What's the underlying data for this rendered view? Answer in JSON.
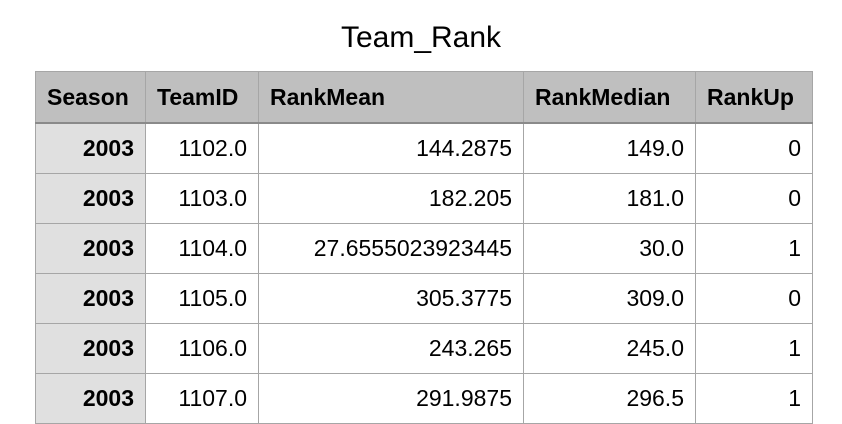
{
  "title": "Team_Rank",
  "table": {
    "columns": [
      "Season",
      "TeamID",
      "RankMean",
      "RankMedian",
      "RankUp"
    ],
    "rows": [
      [
        "2003",
        "1102.0",
        "144.2875",
        "149.0",
        "0"
      ],
      [
        "2003",
        "1103.0",
        "182.205",
        "181.0",
        "0"
      ],
      [
        "2003",
        "1104.0",
        "27.6555023923445",
        "30.0",
        "1"
      ],
      [
        "2003",
        "1105.0",
        "305.3775",
        "309.0",
        "0"
      ],
      [
        "2003",
        "1106.0",
        "243.265",
        "245.0",
        "1"
      ],
      [
        "2003",
        "1107.0",
        "291.9875",
        "296.5",
        "1"
      ]
    ]
  }
}
